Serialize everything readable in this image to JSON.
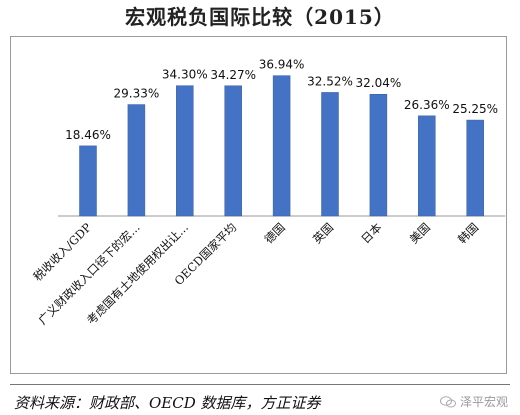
{
  "chart_data": {
    "type": "bar",
    "title": "宏观税负国际比较（2015）",
    "categories": [
      "税收收入/GDP",
      "广义财政收入口径下的宏...",
      "考虑国有土地使用权出让...",
      "OECD国家平均",
      "德国",
      "英国",
      "日本",
      "美国",
      "韩国"
    ],
    "values": [
      18.46,
      29.33,
      34.3,
      34.27,
      36.94,
      32.52,
      32.04,
      26.36,
      25.25
    ],
    "value_labels": [
      "18.46%",
      "29.33%",
      "34.30%",
      "34.27%",
      "36.94%",
      "32.52%",
      "32.04%",
      "26.36%",
      "25.25%"
    ],
    "ylim": [
      0,
      40
    ],
    "grid": false,
    "bar_color": "#4472C4"
  },
  "footer": {
    "source": "资料来源：财政部、OECD 数据库，方正证券",
    "watermark": "泽平宏观"
  }
}
